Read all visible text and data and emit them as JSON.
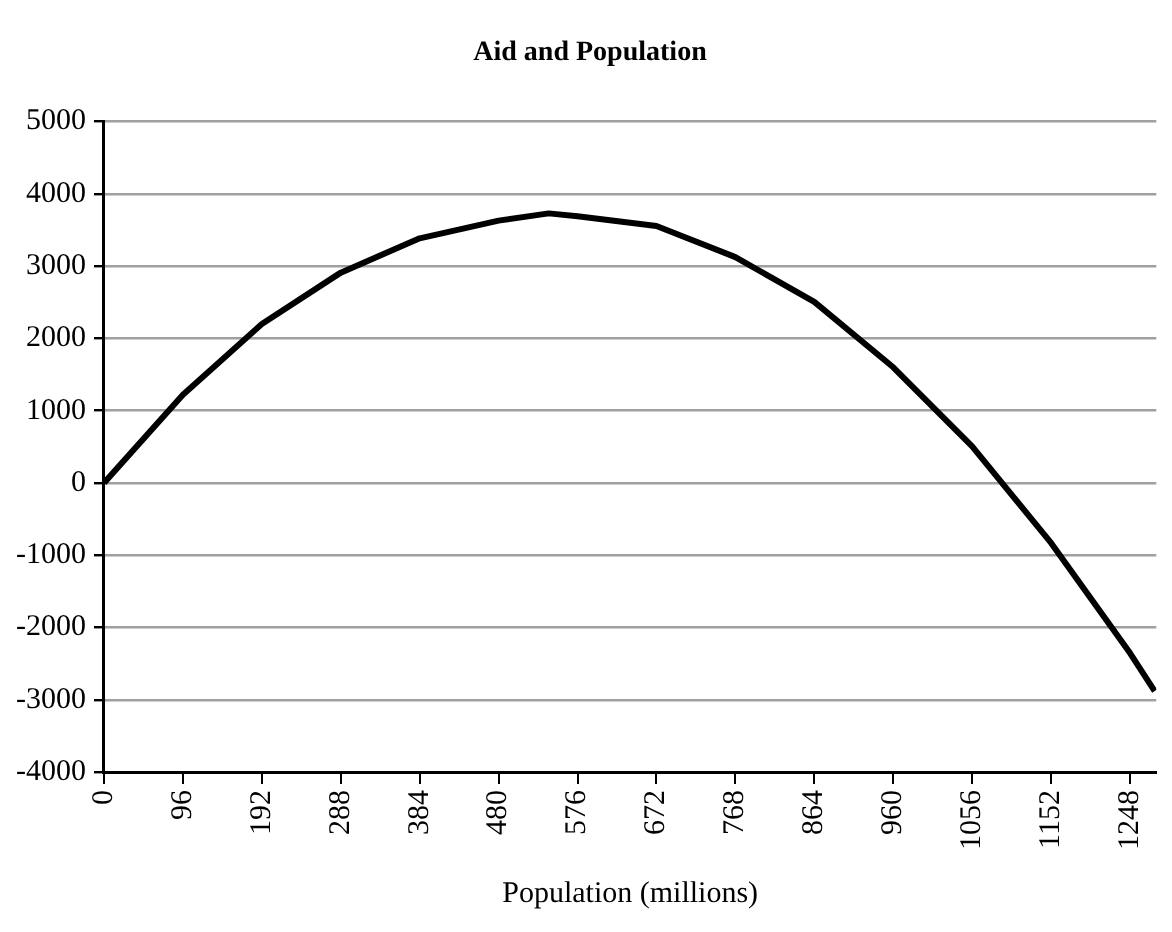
{
  "chart_data": {
    "type": "line",
    "title": "Aid and Population",
    "xlabel": "Population (millions)",
    "x": [
      0,
      96,
      192,
      288,
      384,
      480,
      541,
      576,
      672,
      768,
      864,
      960,
      1056,
      1152,
      1248,
      1278
    ],
    "series": [
      {
        "color": "#000000",
        "values": [
          0,
          1220,
          2200,
          2910,
          3385,
          3630,
          3730,
          3690,
          3555,
          3125,
          2505,
          1600,
          505,
          -830,
          -2355,
          -2880
        ]
      }
    ],
    "xlim": [
      0,
      1280
    ],
    "xticks": [
      0,
      96,
      192,
      288,
      384,
      480,
      576,
      672,
      768,
      864,
      960,
      1056,
      1152,
      1248
    ],
    "ylim": [
      -4000,
      5000
    ],
    "yticks": [
      -4000,
      -3000,
      -2000,
      -1000,
      0,
      1000,
      2000,
      3000,
      4000,
      5000
    ],
    "grid": "y",
    "legend": false,
    "marker": "none",
    "line_style": "solid"
  }
}
